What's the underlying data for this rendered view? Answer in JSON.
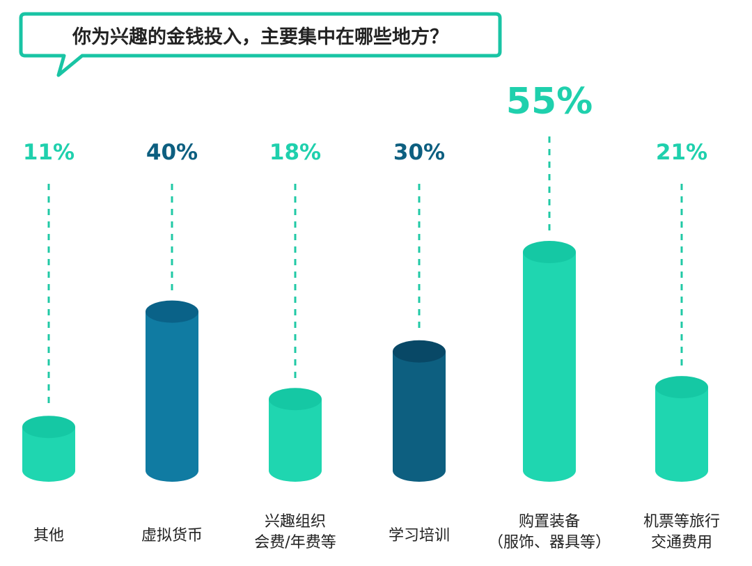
{
  "title": "你为兴趣的金钱投入，主要集中在哪些地方？",
  "colors": {
    "frame": "#19c4a4",
    "teal": "#1fd6b0",
    "teal_top": "#15c8a4",
    "blue": "#107ba2",
    "blue_top": "#0a6288",
    "dark": "#0d5f80",
    "dark_top": "#084866",
    "label_teal": "#1fd0ad",
    "label_dark": "#0d5f80",
    "dash": "#20c9a5",
    "text": "#222222"
  },
  "chart_data": {
    "type": "bar",
    "categories": [
      "其他",
      "虚拟货币",
      "兴趣组织会费/年费等",
      "学习培训",
      "购置装备（服饰、器具等）",
      "机票等旅行交通费用"
    ],
    "category_lines": [
      [
        "其他"
      ],
      [
        "虚拟货币"
      ],
      [
        "兴趣组织",
        "会费/年费等"
      ],
      [
        "学习培训"
      ],
      [
        "购置装备",
        "（服饰、器具等）"
      ],
      [
        "机票等旅行",
        "交通费用"
      ]
    ],
    "values": [
      11,
      40,
      18,
      30,
      55,
      21
    ],
    "value_labels": [
      "11%",
      "40%",
      "18%",
      "30%",
      "55%",
      "21%"
    ],
    "bar_colors": [
      "teal",
      "blue",
      "teal",
      "dark",
      "teal",
      "teal"
    ],
    "label_colors": [
      "label_teal",
      "label_dark",
      "label_teal",
      "label_dark",
      "label_teal",
      "label_teal"
    ],
    "highlight_index": 4,
    "ylim": [
      0,
      55
    ],
    "grid": false,
    "legend": "none"
  }
}
